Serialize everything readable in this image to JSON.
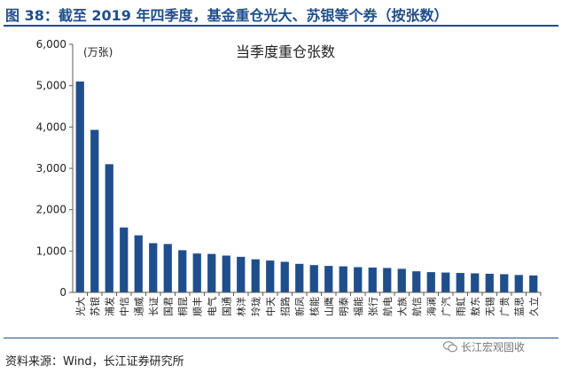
{
  "figure_title": "图 38：截至 2019 年四季度，基金重仓光大、苏银等个券（按张数）",
  "source": "资料来源：Wind，长江证券研究所",
  "watermark": "长江宏观固收",
  "colors": {
    "bar": "#1f4e8c",
    "title": "#1f4e8c",
    "axis": "#595959"
  },
  "chart_data": {
    "type": "bar",
    "title": "当季度重仓张数",
    "unit_label": "(万张)",
    "ylim": [
      0,
      6000
    ],
    "yticks": [
      "0",
      "1,000",
      "2,000",
      "3,000",
      "4,000",
      "5,000",
      "6,000"
    ],
    "grid": false,
    "categories": [
      "光大",
      "苏银",
      "浦发",
      "中信",
      "通威",
      "长证",
      "国君",
      "桐昆",
      "顺丰",
      "电气",
      "国通",
      "林洋",
      "玲珑",
      "中天",
      "招路",
      "新凤",
      "核能",
      "山鹰",
      "明泰",
      "福能",
      "张行",
      "航电",
      "大族",
      "航信",
      "海澜",
      "广汽",
      "雨虹",
      "敖东",
      "无锡",
      "广贵",
      "蓝思",
      "久立"
    ],
    "values": [
      5100,
      3930,
      3100,
      1570,
      1380,
      1190,
      1170,
      1020,
      940,
      930,
      890,
      860,
      800,
      770,
      740,
      690,
      660,
      640,
      630,
      610,
      600,
      590,
      570,
      510,
      490,
      480,
      470,
      460,
      450,
      440,
      420,
      410
    ]
  }
}
